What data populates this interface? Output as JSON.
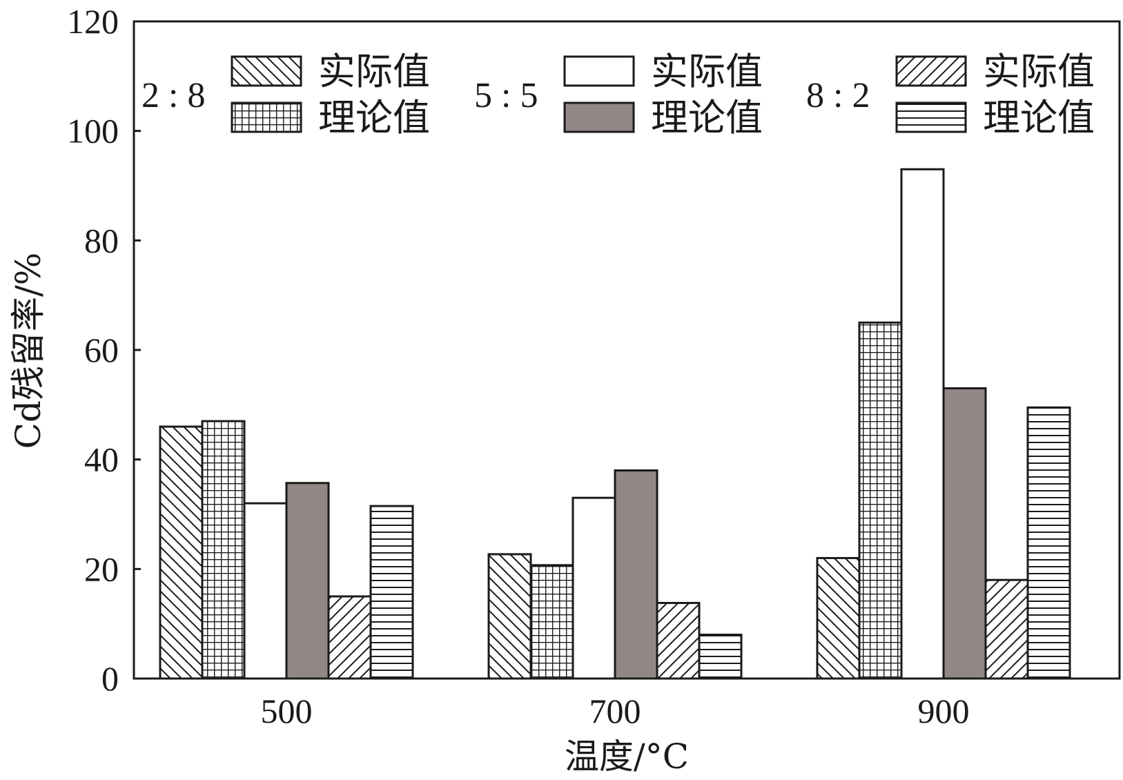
{
  "chart_data": {
    "type": "bar",
    "title": "",
    "xlabel": "温度/°C",
    "ylabel": "Cd残留率/%",
    "ylim": [
      0,
      120
    ],
    "yticks": [
      "0",
      "20",
      "40",
      "60",
      "80",
      "100",
      "120"
    ],
    "categories": [
      "500",
      "700",
      "900"
    ],
    "groups": [
      {
        "ratio": "2 : 8"
      },
      {
        "ratio": "5 : 5"
      },
      {
        "ratio": "8 : 2"
      }
    ],
    "series": [
      {
        "group": 0,
        "name": "实际值",
        "fill": "hatch-backslash",
        "values": [
          46,
          22.7,
          22
        ]
      },
      {
        "group": 0,
        "name": "理论值",
        "fill": "hatch-grid",
        "values": [
          47,
          20.7,
          65
        ]
      },
      {
        "group": 1,
        "name": "实际值",
        "fill": "white",
        "values": [
          32,
          33,
          93
        ]
      },
      {
        "group": 1,
        "name": "理论值",
        "fill": "solid-gray",
        "values": [
          35.7,
          38,
          53
        ]
      },
      {
        "group": 2,
        "name": "实际值",
        "fill": "hatch-slash",
        "values": [
          15,
          13.8,
          18
        ]
      },
      {
        "group": 2,
        "name": "理论值",
        "fill": "hatch-horizontal",
        "values": [
          31.5,
          8,
          49.5
        ]
      }
    ],
    "grid": false,
    "legend_position": "top"
  },
  "colors": {
    "gray_fill": "#918784",
    "stroke": "#1a1a1a",
    "background": "#ffffff"
  }
}
